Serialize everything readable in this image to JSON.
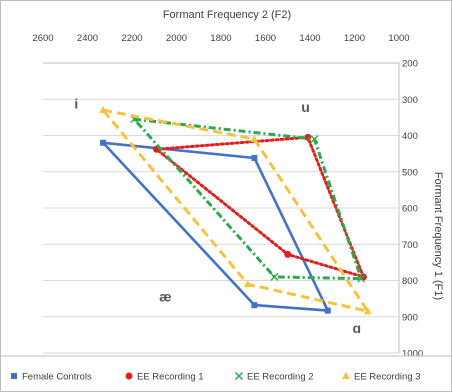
{
  "chart_data": {
    "type": "line",
    "x_axis_position": "top",
    "y_axis_position": "right",
    "xlabel": "Formant Frequency 2 (F2)",
    "ylabel": "Formant Frequency 1 (F1)",
    "xlim": [
      2600,
      1000
    ],
    "ylim": [
      200,
      1000
    ],
    "x_reversed": true,
    "y_reversed": true,
    "x_ticks": [
      2600,
      2400,
      2200,
      2000,
      1800,
      1600,
      1400,
      1200,
      1000
    ],
    "y_ticks": [
      200,
      300,
      400,
      500,
      600,
      700,
      800,
      900,
      1000
    ],
    "x_tick_labels": [
      "2600",
      "2400",
      "2200",
      "2000",
      "1800",
      "1600",
      "1400",
      "1200",
      "1000"
    ],
    "y_tick_labels": [
      "200",
      "300",
      "400",
      "500",
      "600",
      "700",
      "800",
      "900",
      "1000"
    ],
    "gridlines": true,
    "legend_position": "bottom",
    "vowel_labels": [
      {
        "text": "i",
        "x": 2450,
        "y": 325
      },
      {
        "text": "u",
        "x": 1420,
        "y": 335
      },
      {
        "text": "æ",
        "x": 2050,
        "y": 858
      },
      {
        "text": "ɑ",
        "x": 1190,
        "y": 945
      }
    ],
    "series": [
      {
        "name": "Female Controls",
        "color": "#4472c4",
        "dash": "solid",
        "marker": "square",
        "points": [
          [
            2330,
            420
          ],
          [
            1650,
            462
          ],
          [
            1320,
            883
          ],
          [
            1650,
            868
          ],
          [
            2330,
            420
          ]
        ]
      },
      {
        "name": "EE Recording 1",
        "color": "#e0201e",
        "dash": "dotted",
        "marker": "circle",
        "points": [
          [
            2090,
            438
          ],
          [
            1410,
            405
          ],
          [
            1160,
            790
          ],
          [
            1500,
            728
          ],
          [
            2090,
            438
          ]
        ]
      },
      {
        "name": "EE Recording 2",
        "color": "#2ea84f",
        "dash": "dashdot",
        "marker": "x",
        "points": [
          [
            2190,
            355
          ],
          [
            1380,
            410
          ],
          [
            1170,
            795
          ],
          [
            1560,
            790
          ],
          [
            2190,
            355
          ]
        ]
      },
      {
        "name": "EE Recording 3",
        "color": "#f5c242",
        "dash": "dashed",
        "marker": "triangle",
        "points": [
          [
            2330,
            330
          ],
          [
            1650,
            410
          ],
          [
            1140,
            885
          ],
          [
            1680,
            810
          ],
          [
            2330,
            330
          ]
        ]
      }
    ]
  }
}
